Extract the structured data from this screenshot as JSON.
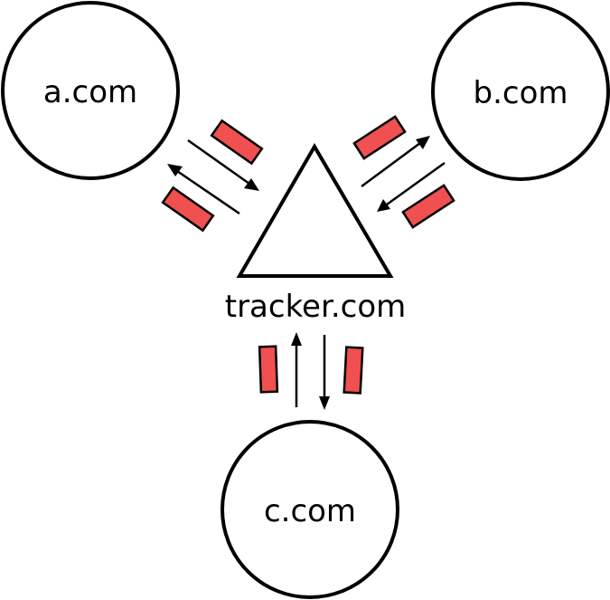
{
  "nodes": {
    "a": {
      "label": "a.com"
    },
    "b": {
      "label": "b.com"
    },
    "c": {
      "label": "c.com"
    },
    "tracker": {
      "label": "tracker.com"
    }
  },
  "colors": {
    "cookie_fill": "#f05050",
    "stroke": "#000000",
    "background": "#ffffff"
  }
}
